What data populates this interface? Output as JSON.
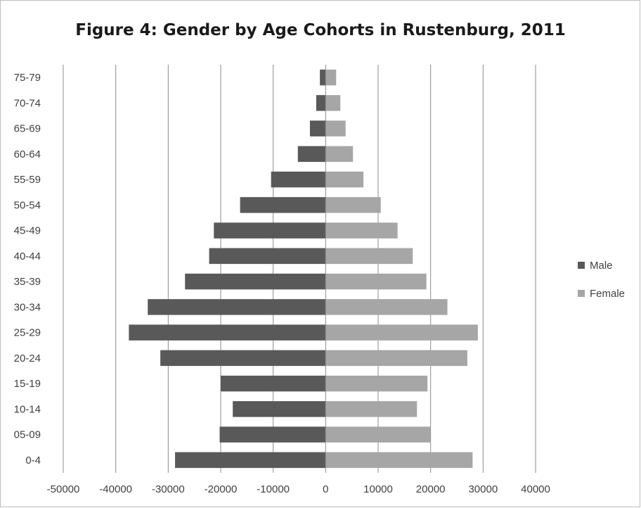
{
  "chart_data": {
    "type": "bar",
    "orientation": "horizontal",
    "title": "Figure 4: Gender by Age Cohorts in Rustenburg, 2011",
    "categories": [
      "0-4",
      "05-09",
      "10-14",
      "15-19",
      "20-24",
      "25-29",
      "30-34",
      "35-39",
      "40-44",
      "45-49",
      "50-54",
      "55-59",
      "60-64",
      "65-69",
      "70-74",
      "75-79"
    ],
    "series": [
      {
        "name": "Male",
        "color": "#595959",
        "values": [
          -28700,
          -20200,
          -17700,
          -20000,
          -31500,
          -37500,
          -33900,
          -26800,
          -22200,
          -21300,
          -16300,
          -10400,
          -5300,
          -3000,
          -1800,
          -1100
        ]
      },
      {
        "name": "Female",
        "color": "#a6a6a6",
        "values": [
          28000,
          20000,
          17400,
          19400,
          27000,
          29000,
          23200,
          19200,
          16600,
          13700,
          10500,
          7200,
          5200,
          3800,
          2800,
          2000
        ]
      }
    ],
    "xlim": [
      -50000,
      40000
    ],
    "xticks": [
      "-50000",
      "-40000",
      "-30000",
      "-20000",
      "-10000",
      "0",
      "10000",
      "20000",
      "30000",
      "40000"
    ],
    "grid": "vertical",
    "legend": "right"
  }
}
